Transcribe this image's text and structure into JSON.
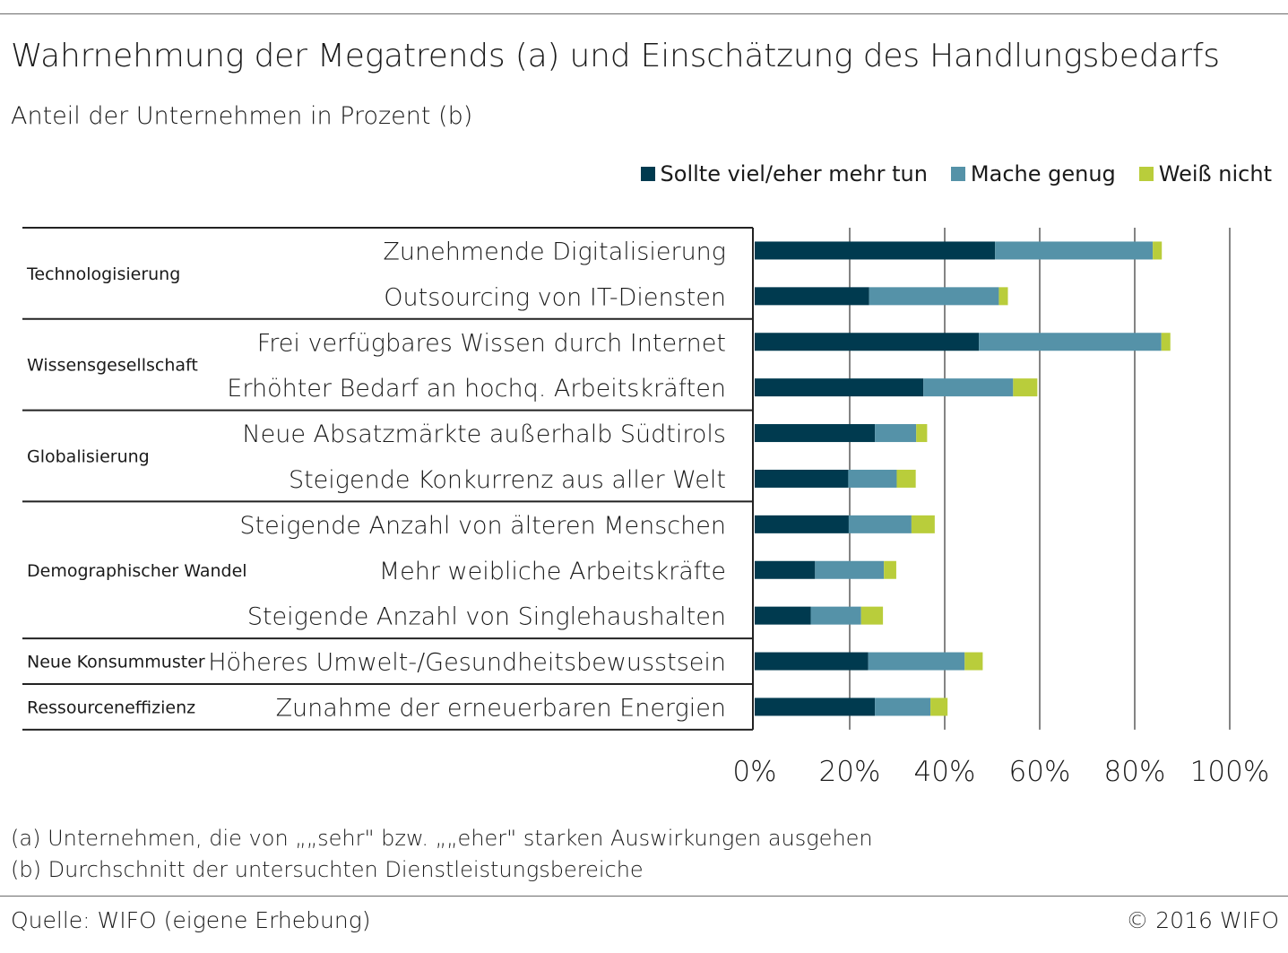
{
  "header": {
    "title": "Wahrnehmung der Megatrends (a) und Einschätzung des Handlungsbedarfs",
    "subtitle": "Anteil der Unternehmen in Prozent (b)"
  },
  "colors": {
    "series1": "#003a4f",
    "series2": "#5592a8",
    "series3": "#b9cd3b",
    "grid": "#333333",
    "line": "#222222"
  },
  "chart_data": {
    "type": "bar",
    "orientation": "horizontal",
    "stacked": true,
    "title": "Wahrnehmung der Megatrends (a) und Einschätzung des Handlungsbedarfs",
    "subtitle": "Anteil der Unternehmen in Prozent (b)",
    "xlim": [
      0,
      100
    ],
    "x_ticks": [
      "0%",
      "20%",
      "40%",
      "60%",
      "80%",
      "100%"
    ],
    "grid": "vertical",
    "legend_position": "top-right",
    "groups": [
      {
        "name": "Technologisierung",
        "count": 2
      },
      {
        "name": "Wissensgesellschaft",
        "count": 2
      },
      {
        "name": "Globalisierung",
        "count": 2
      },
      {
        "name": "Demographischer Wandel",
        "count": 3
      },
      {
        "name": "Neue Konsummuster",
        "count": 1
      },
      {
        "name": "Ressourceneffizienz",
        "count": 1
      }
    ],
    "categories": [
      "Zunehmende Digitalisierung",
      "Outsourcing von IT-Diensten",
      "Frei verfügbares Wissen durch Internet",
      "Erhöhter Bedarf an hochq. Arbeitskräften",
      "Neue Absatzmärkte außerhalb Südtirols",
      "Steigende Konkurrenz aus aller Welt",
      "Steigende Anzahl von älteren Menschen",
      "Mehr weibliche Arbeitskräfte",
      "Steigende Anzahl von Singlehaushalten",
      "Höheres Umwelt-/Gesundheitsbewusstsein",
      "Zunahme der erneuerbaren Energien"
    ],
    "series": [
      {
        "name": "Sollte viel/eher mehr tun",
        "values": [
          50.6,
          24.1,
          47.2,
          35.5,
          25.3,
          19.7,
          19.8,
          12.7,
          11.8,
          23.9,
          25.3
        ]
      },
      {
        "name": "Mache genug",
        "values": [
          33.2,
          27.3,
          38.4,
          18.9,
          8.7,
          10.2,
          13.2,
          14.5,
          10.6,
          20.3,
          11.7
        ]
      },
      {
        "name": "Weiß nicht",
        "values": [
          1.9,
          1.9,
          1.9,
          5.1,
          2.3,
          4.0,
          4.9,
          2.6,
          4.6,
          3.8,
          3.6
        ]
      }
    ]
  },
  "footnotes": {
    "a": "(a) Unternehmen, die von „„sehr\" bzw. „„eher\" starken Auswirkungen ausgehen",
    "b": "(b) Durchschnitt der untersuchten Dienstleistungsbereiche"
  },
  "footer": {
    "source": "Quelle: WIFO (eigene Erhebung)",
    "copyright": "© 2016 WIFO"
  }
}
